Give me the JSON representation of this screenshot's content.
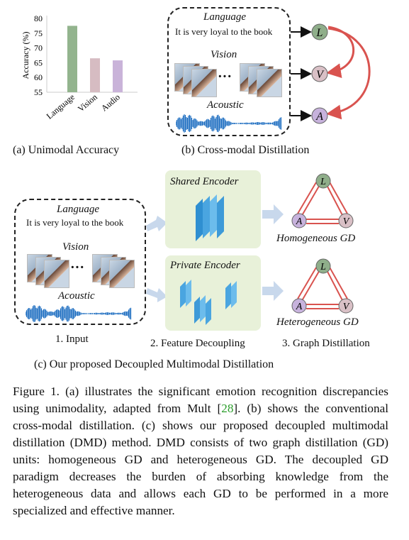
{
  "panel_a": {
    "chart_data": {
      "type": "bar",
      "categories": [
        "Language",
        "Vision",
        "Audio"
      ],
      "values": [
        77.5,
        66.5,
        65.8
      ],
      "colors": [
        "#93b48e",
        "#d6bcc2",
        "#c9b3d9"
      ],
      "ylabel": "Accuracy (%)",
      "yticks": [
        55,
        60,
        65,
        70,
        75,
        80
      ],
      "ylim": [
        55,
        80
      ]
    },
    "caption": "(a) Unimodal Accuracy"
  },
  "panel_b": {
    "language_title": "Language",
    "language_text": "It is very loyal to the book",
    "vision_title": "Vision",
    "acoustic_title": "Acoustic",
    "ellipsis": "···",
    "nodes": [
      "L",
      "V",
      "A"
    ],
    "node_colors": {
      "L": "#8fae8a",
      "V": "#d9c0c6",
      "A": "#c7b2dc"
    },
    "caption": "(b) Cross-modal Distillation"
  },
  "panel_c": {
    "input": {
      "language_title": "Language",
      "language_text": "It is very loyal to the book",
      "vision_title": "Vision",
      "acoustic_title": "Acoustic",
      "ellipsis": "···",
      "label": "1. Input"
    },
    "shared_encoder": "Shared  Encoder",
    "private_encoder": "Private Encoder",
    "feature_label": "2. Feature Decoupling",
    "homogeneous": "Homogeneous  GD",
    "heterogeneous": "Heterogeneous  GD",
    "graph_label": "3. Graph Distillation",
    "nodes": [
      "L",
      "A",
      "V"
    ],
    "caption": "(c) Our proposed Decoupled Multimodal Distillation"
  },
  "figure_caption": {
    "prefix": "Figure",
    "number": " 1.",
    "text_1": "  (a) illustrates the significant emotion recognition discrepancies using unimodality, adapted from Mult [",
    "ref": "28",
    "text_2": "]. (b) shows the conventional cross-modal distillation. (c) shows our proposed decoupled multimodal distillation (DMD) method. DMD consists of two graph distillation (GD) units: homogeneous GD and heterogeneous GD. The decoupled GD paradigm decreases the burden of absorbing knowledge from the heterogeneous data and allows each GD to be performed in a more specialized and effective manner."
  }
}
